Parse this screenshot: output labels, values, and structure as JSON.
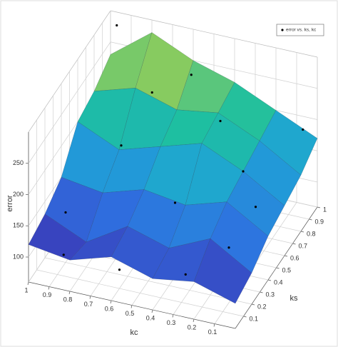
{
  "chart_data": {
    "type": "surface",
    "legend": "error vs. ks, kc",
    "legend_corner": "top-right",
    "xlabel": "kc",
    "ylabel": "ks",
    "zlabel": "error",
    "xlim": [
      0,
      1
    ],
    "ylim": [
      0,
      1
    ],
    "zlim": [
      60,
      300
    ],
    "xticks": [
      0.1,
      0.2,
      0.3,
      0.4,
      0.5,
      0.6,
      0.7,
      0.8,
      0.9,
      1
    ],
    "yticks": [
      0.1,
      0.2,
      0.3,
      0.4,
      0.5,
      0.6,
      0.7,
      0.8,
      0.9,
      1
    ],
    "zticks": [
      100,
      150,
      200,
      250
    ],
    "grid": true,
    "colormap": [
      "#3e26a8",
      "#2f6fe0",
      "#1fa3d6",
      "#1ebfa0",
      "#8ccb5d",
      "#e8c73a"
    ],
    "surface": {
      "x": [
        0,
        0.2,
        0.4,
        0.6,
        0.8,
        1
      ],
      "y": [
        0,
        0.2,
        0.4,
        0.6,
        0.8,
        1
      ],
      "z": [
        [
          100,
          120,
          110,
          130,
          110,
          120
        ],
        [
          110,
          150,
          120,
          140,
          100,
          130
        ],
        [
          130,
          170,
          150,
          160,
          140,
          150
        ],
        [
          140,
          180,
          210,
          190,
          170,
          200
        ],
        [
          150,
          190,
          220,
          210,
          230,
          210
        ],
        [
          170,
          200,
          230,
          250,
          280,
          230
        ]
      ]
    },
    "points": {
      "kc": [
        0.95,
        0.9,
        0.75,
        0.55,
        0.3,
        0.2,
        0.6,
        0.45,
        0.15,
        0.05,
        0.85,
        0.35,
        0.7,
        0.1
      ],
      "ks": [
        0.95,
        0.2,
        0.5,
        0.85,
        0.15,
        0.6,
        0.1,
        0.4,
        0.3,
        0.95,
        0.05,
        0.7,
        0.75,
        0.5
      ],
      "z": [
        290,
        140,
        200,
        260,
        95,
        180,
        90,
        150,
        120,
        190,
        105,
        230,
        240,
        150
      ],
      "color": "#000000"
    }
  }
}
